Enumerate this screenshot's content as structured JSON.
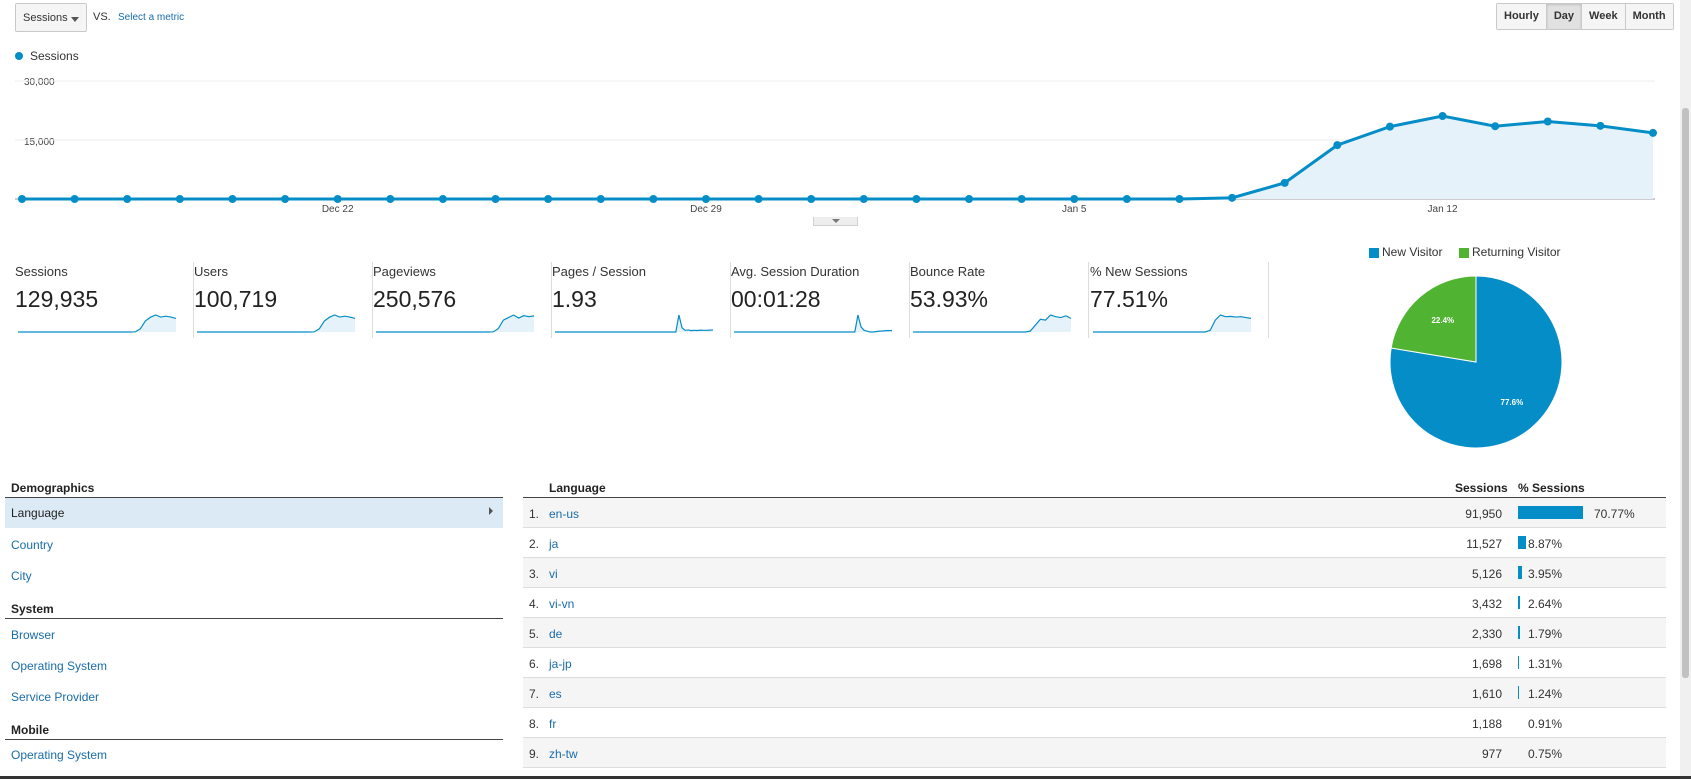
{
  "toolbar": {
    "metric_select": "Sessions",
    "vs_label": "VS.",
    "select_metric": "Select a metric",
    "ranges": [
      "Hourly",
      "Day",
      "Week",
      "Month"
    ],
    "active_range": "Day"
  },
  "chart_data": {
    "type": "area",
    "series": [
      {
        "name": "Sessions",
        "color": "#058dc7",
        "values": [
          0,
          0,
          0,
          0,
          0,
          0,
          0,
          0,
          0,
          0,
          0,
          0,
          0,
          0,
          0,
          0,
          0,
          0,
          0,
          0,
          0,
          0,
          0,
          300,
          4100,
          13700,
          18400,
          21100,
          18500,
          19700,
          18600,
          16800
        ]
      }
    ],
    "x_tick_labels": [
      {
        "label": "Dec 22",
        "index": 6
      },
      {
        "label": "Dec 29",
        "index": 13
      },
      {
        "label": "Jan 5",
        "index": 20
      },
      {
        "label": "Jan 12",
        "index": 27
      }
    ],
    "y_tick_labels": [
      "30,000",
      "15,000"
    ],
    "ylim": [
      0,
      30000
    ],
    "grid": true,
    "legend_position": "top-left"
  },
  "scorecards": [
    {
      "name": "Sessions",
      "value": "129,935",
      "spark": [
        0,
        0,
        0,
        0,
        0,
        0,
        0,
        0,
        0,
        0,
        0,
        0,
        0,
        0,
        0,
        0,
        0,
        0,
        0,
        0,
        0,
        0,
        0,
        1,
        19,
        65,
        87,
        100,
        88,
        93,
        88,
        80
      ]
    },
    {
      "name": "Users",
      "value": "100,719",
      "spark": [
        0,
        0,
        0,
        0,
        0,
        0,
        0,
        0,
        0,
        0,
        0,
        0,
        0,
        0,
        0,
        0,
        0,
        0,
        0,
        0,
        0,
        0,
        0,
        1,
        19,
        65,
        87,
        100,
        88,
        93,
        88,
        80
      ]
    },
    {
      "name": "Pageviews",
      "value": "250,576",
      "spark": [
        0,
        0,
        0,
        0,
        0,
        0,
        0,
        0,
        0,
        0,
        0,
        0,
        0,
        0,
        0,
        0,
        0,
        0,
        0,
        0,
        0,
        0,
        0,
        1,
        20,
        70,
        85,
        100,
        82,
        96,
        90,
        95
      ]
    },
    {
      "name": "Pages / Session",
      "value": "1.93",
      "spark": [
        0,
        0,
        0,
        0,
        0,
        0,
        0,
        0,
        0,
        0,
        0,
        0,
        0,
        0,
        0,
        0,
        0,
        0,
        0,
        0,
        0,
        0,
        0,
        0,
        0,
        0,
        0,
        0,
        0,
        0,
        0,
        0,
        0,
        0,
        0,
        0,
        0,
        0,
        0,
        0,
        100,
        25,
        10,
        12,
        8,
        10,
        9,
        11,
        10,
        10,
        11,
        12
      ]
    },
    {
      "name": "Avg. Session Duration",
      "value": "00:01:28",
      "spark": [
        0,
        0,
        0,
        0,
        0,
        0,
        0,
        0,
        0,
        0,
        0,
        0,
        0,
        0,
        0,
        0,
        0,
        0,
        0,
        0,
        0,
        0,
        0,
        0,
        0,
        0,
        0,
        0,
        0,
        0,
        0,
        0,
        0,
        0,
        0,
        0,
        0,
        0,
        0,
        0,
        100,
        30,
        10,
        5,
        0,
        0,
        3,
        5,
        6,
        8,
        8,
        9
      ]
    },
    {
      "name": "Bounce Rate",
      "value": "53.93%",
      "spark": [
        0,
        0,
        0,
        0,
        0,
        0,
        0,
        0,
        0,
        0,
        0,
        0,
        0,
        0,
        0,
        0,
        0,
        0,
        0,
        0,
        0,
        0,
        0,
        5,
        40,
        75,
        70,
        100,
        90,
        85,
        95,
        80
      ]
    },
    {
      "name": "% New Sessions",
      "value": "77.51%",
      "spark": [
        0,
        0,
        0,
        0,
        0,
        0,
        0,
        0,
        0,
        0,
        0,
        0,
        0,
        0,
        0,
        0,
        0,
        0,
        0,
        0,
        0,
        0,
        0,
        10,
        70,
        100,
        90,
        92,
        88,
        90,
        85,
        80
      ]
    }
  ],
  "pie": {
    "legend": [
      {
        "label": "New Visitor",
        "color": "#058dc7"
      },
      {
        "label": "Returning Visitor",
        "color": "#50b432"
      }
    ],
    "slices": [
      {
        "label": "77.6%",
        "value": 77.6,
        "color": "#058dc7"
      },
      {
        "label": "22.4%",
        "value": 22.4,
        "color": "#50b432"
      }
    ]
  },
  "nav": {
    "demographics": "Demographics",
    "language": "Language",
    "country": "Country",
    "city": "City",
    "system": "System",
    "browser": "Browser",
    "operating_system": "Operating System",
    "service_provider": "Service Provider",
    "mobile": "Mobile",
    "mobile_operating_system": "Operating System"
  },
  "table": {
    "col_language": "Language",
    "col_sessions": "Sessions",
    "col_pct_sessions": "% Sessions",
    "rows": [
      {
        "idx": "1.",
        "lang": "en-us",
        "sessions": "91,950",
        "pct": "70.77%",
        "share": 70.77
      },
      {
        "idx": "2.",
        "lang": "ja",
        "sessions": "11,527",
        "pct": "8.87%",
        "share": 8.87
      },
      {
        "idx": "3.",
        "lang": "vi",
        "sessions": "5,126",
        "pct": "3.95%",
        "share": 3.95
      },
      {
        "idx": "4.",
        "lang": "vi-vn",
        "sessions": "3,432",
        "pct": "2.64%",
        "share": 2.64
      },
      {
        "idx": "5.",
        "lang": "de",
        "sessions": "2,330",
        "pct": "1.79%",
        "share": 1.79
      },
      {
        "idx": "6.",
        "lang": "ja-jp",
        "sessions": "1,698",
        "pct": "1.31%",
        "share": 1.31
      },
      {
        "idx": "7.",
        "lang": "es",
        "sessions": "1,610",
        "pct": "1.24%",
        "share": 1.24
      },
      {
        "idx": "8.",
        "lang": "fr",
        "sessions": "1,188",
        "pct": "0.91%",
        "share": 0.91
      },
      {
        "idx": "9.",
        "lang": "zh-tw",
        "sessions": "977",
        "pct": "0.75%",
        "share": 0.75
      }
    ]
  }
}
